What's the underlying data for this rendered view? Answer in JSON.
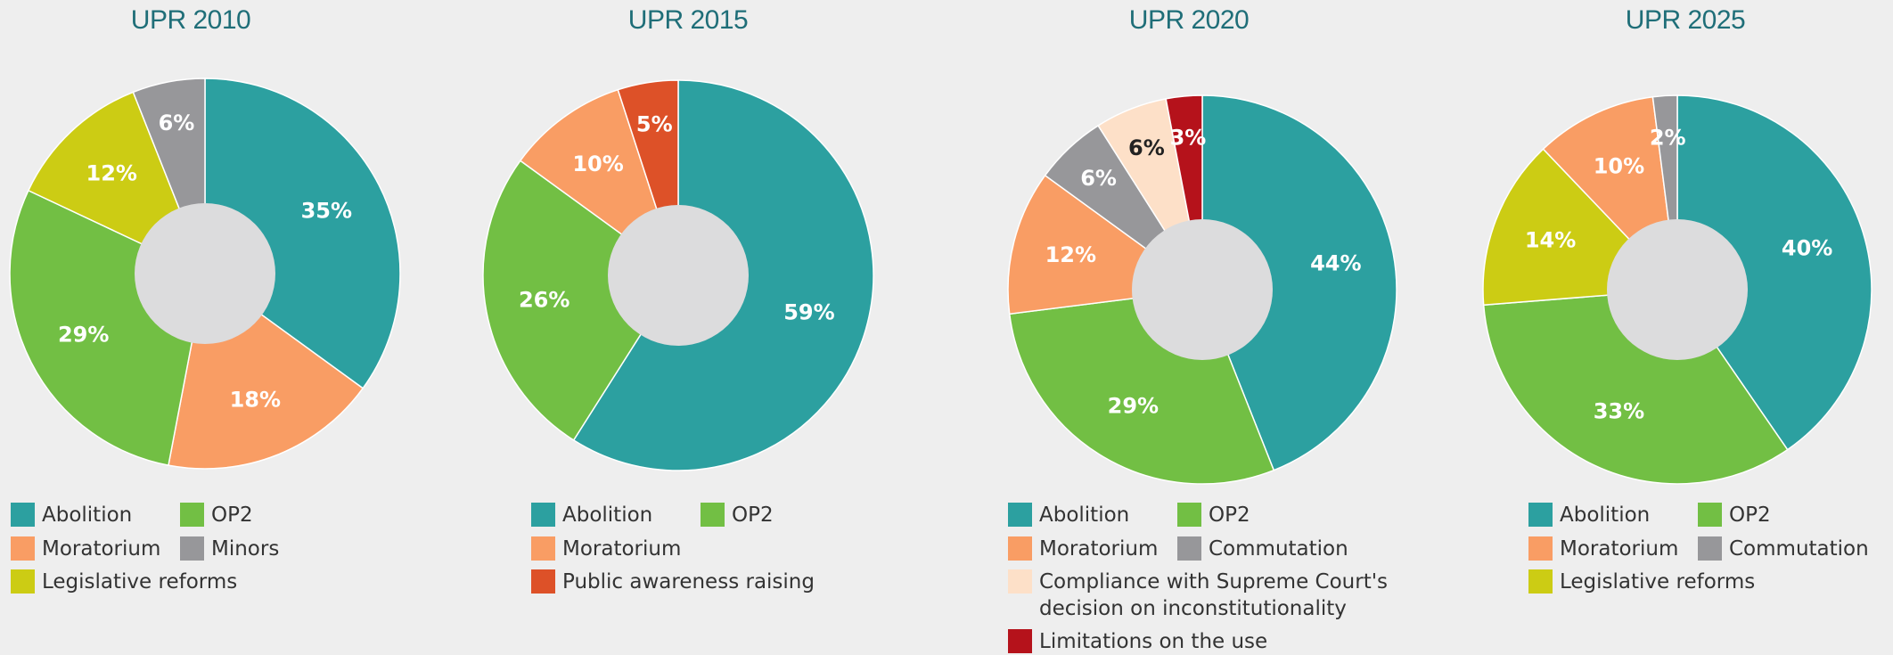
{
  "chart_data": [
    {
      "type": "pie",
      "title": "UPR 2010",
      "categories": [
        "Abolition",
        "Moratorium",
        "OP2",
        "Legislative reforms",
        "Minors"
      ],
      "values": [
        35,
        18,
        29,
        12,
        6
      ],
      "value_labels": [
        "35%",
        "18%",
        "29%",
        "12%",
        "6%"
      ],
      "colors": [
        "#2ca0a0",
        "#f99d64",
        "#72bf44",
        "#cccc14",
        "#97979a"
      ]
    },
    {
      "type": "pie",
      "title": "UPR 2015",
      "categories": [
        "Abolition",
        "OP2",
        "Moratorium",
        "Public awareness raising"
      ],
      "values": [
        59,
        26,
        10,
        5
      ],
      "value_labels": [
        "59%",
        "26%",
        "10%",
        "5%"
      ],
      "colors": [
        "#2ca0a0",
        "#72bf44",
        "#f99d64",
        "#dd5128"
      ]
    },
    {
      "type": "pie",
      "title": "UPR 2020",
      "categories": [
        "Abolition",
        "OP2",
        "Moratorium",
        "Commutation",
        "Compliance with Supreme Court's decision on inconstitutionality",
        "Limitations on the use"
      ],
      "values": [
        44,
        29,
        12,
        6,
        6,
        3
      ],
      "value_labels": [
        "44%",
        "29%",
        "12%",
        "6%",
        "6%",
        "3%"
      ],
      "colors": [
        "#2ca0a0",
        "#72bf44",
        "#f99d64",
        "#97979a",
        "#fde0c8",
        "#b5121b"
      ]
    },
    {
      "type": "pie",
      "title": "UPR 2025",
      "categories": [
        "Abolition",
        "OP2",
        "Legislative reforms",
        "Moratorium",
        "Commutation"
      ],
      "values": [
        40,
        33,
        14,
        10,
        2
      ],
      "value_labels": [
        "40%",
        "33%",
        "14%",
        "10%",
        "2%"
      ],
      "colors": [
        "#2ca0a0",
        "#72bf44",
        "#cccc14",
        "#f99d64",
        "#97979a"
      ]
    }
  ]
}
